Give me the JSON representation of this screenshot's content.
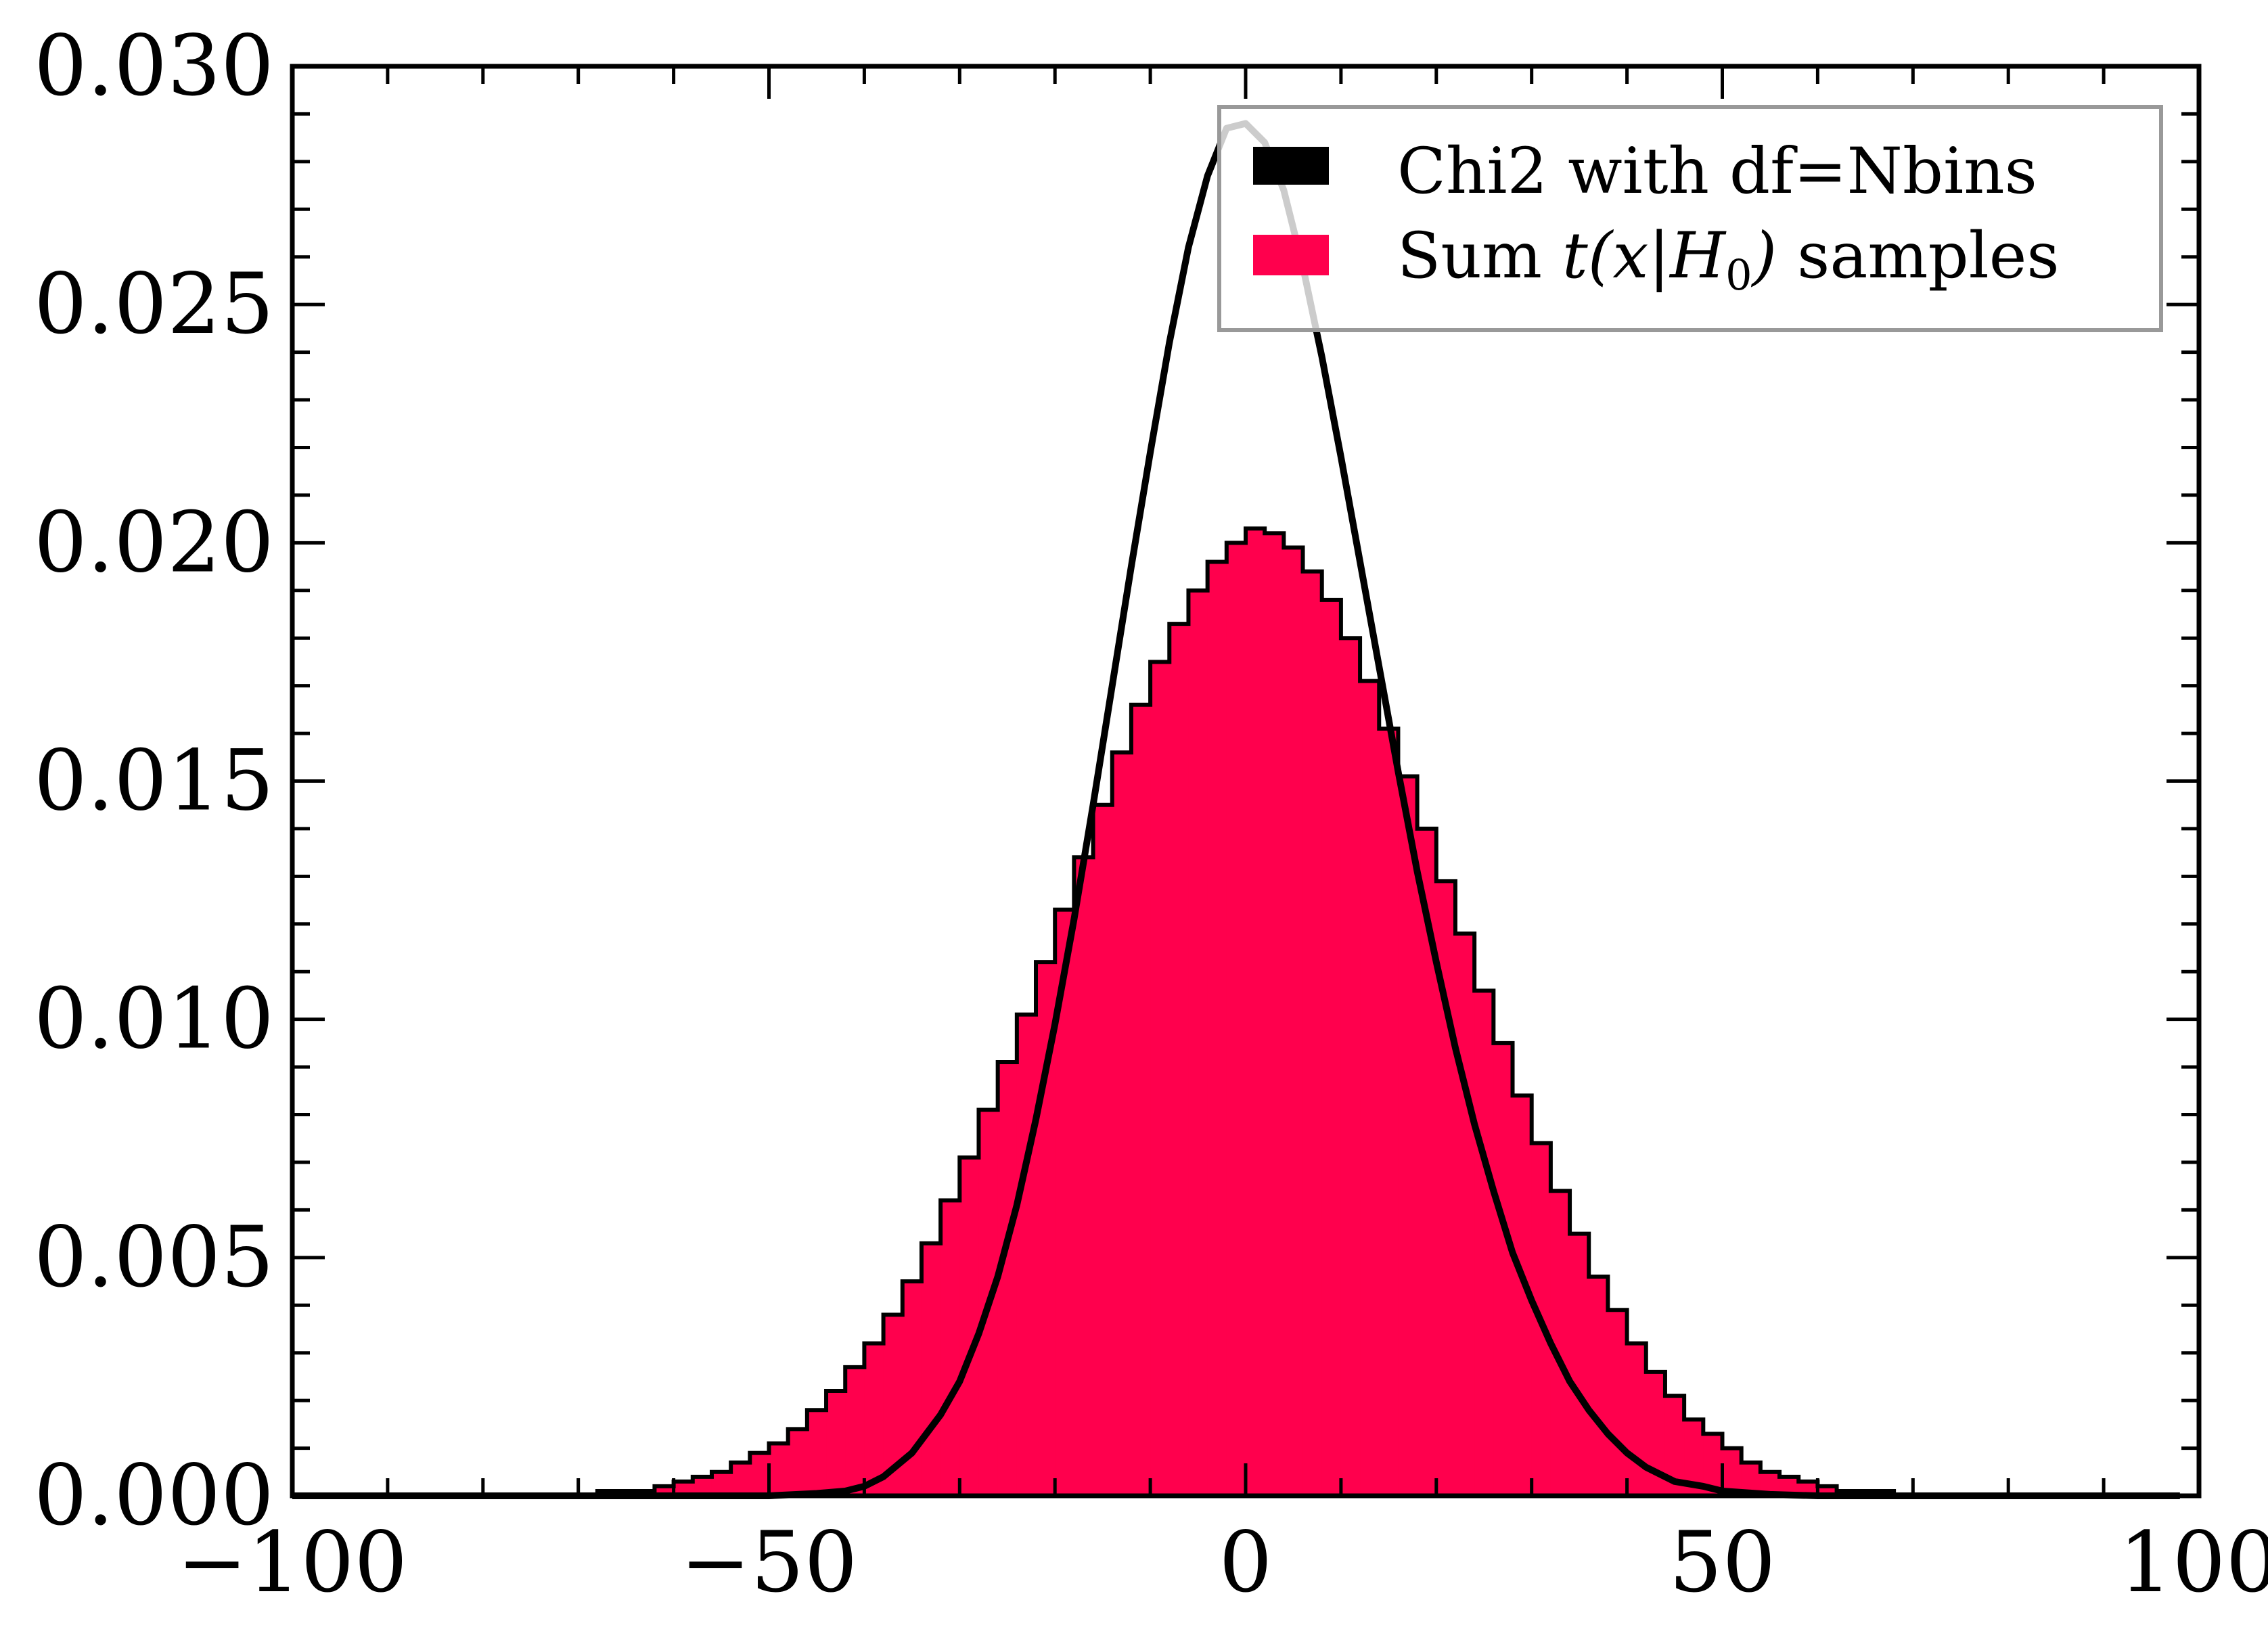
{
  "chart_data": {
    "type": "bar",
    "title": "",
    "xlabel": "",
    "ylabel": "",
    "xlim": [
      -100,
      100
    ],
    "ylim": [
      0,
      0.03
    ],
    "xticks": [
      -100,
      -50,
      0,
      50,
      100
    ],
    "xtick_labels": [
      "−100",
      "−50",
      "0",
      "50",
      "100"
    ],
    "yticks": [
      0.0,
      0.005,
      0.01,
      0.015,
      0.02,
      0.025,
      0.03
    ],
    "ytick_labels": [
      "0.000",
      "0.005",
      "0.010",
      "0.015",
      "0.020",
      "0.025",
      "0.030"
    ],
    "grid": false,
    "legend_position": "upper-right",
    "legend": [
      {
        "label_prefix": "Chi2 with df=Nbins",
        "label_math": "",
        "label_suffix": "",
        "color": "#000000"
      },
      {
        "label_prefix": "Sum ",
        "label_math": "t(x|H0)",
        "label_suffix": " samples",
        "color": "#ff004d"
      }
    ],
    "series": [
      {
        "name": "Sum t(x|H0) samples",
        "type": "histogram",
        "color": "#ff004d",
        "edge_color": "#000000",
        "bin_edges": [
          -98,
          -96,
          -94,
          -92,
          -90,
          -88,
          -86,
          -84,
          -82,
          -80,
          -78,
          -76,
          -74,
          -72,
          -70,
          -68,
          -66,
          -64,
          -62,
          -60,
          -58,
          -56,
          -54,
          -52,
          -50,
          -48,
          -46,
          -44,
          -42,
          -40,
          -38,
          -36,
          -34,
          -32,
          -30,
          -28,
          -26,
          -24,
          -22,
          -20,
          -18,
          -16,
          -14,
          -12,
          -10,
          -8,
          -6,
          -4,
          -2,
          0,
          2,
          4,
          6,
          8,
          10,
          12,
          14,
          16,
          18,
          20,
          22,
          24,
          26,
          28,
          30,
          32,
          34,
          36,
          38,
          40,
          42,
          44,
          46,
          48,
          50,
          52,
          54,
          56,
          58,
          60,
          62,
          64,
          66,
          68,
          70,
          72,
          74,
          76,
          78,
          80,
          82,
          84,
          86,
          88,
          90,
          92,
          94,
          96,
          98
        ],
        "values": [
          0.0,
          0.0,
          0.0,
          0.0,
          0.0,
          0.0,
          0.0,
          0.0,
          0.0,
          0.0,
          0.0,
          0.0,
          0.0,
          0.0,
          0.0,
          0.0001,
          0.0001,
          0.0001,
          0.0002,
          0.0003,
          0.0004,
          0.0005,
          0.0007,
          0.0009,
          0.0011,
          0.0014,
          0.0018,
          0.0022,
          0.0027,
          0.0032,
          0.0038,
          0.0045,
          0.0053,
          0.0062,
          0.0071,
          0.0081,
          0.0091,
          0.0101,
          0.0112,
          0.0123,
          0.0134,
          0.0145,
          0.0156,
          0.0166,
          0.0175,
          0.0183,
          0.019,
          0.0196,
          0.02,
          0.0203,
          0.0202,
          0.0199,
          0.0194,
          0.0188,
          0.018,
          0.0171,
          0.0161,
          0.0151,
          0.014,
          0.0129,
          0.0118,
          0.0106,
          0.0095,
          0.0084,
          0.0074,
          0.0064,
          0.0055,
          0.0046,
          0.0039,
          0.0032,
          0.0026,
          0.0021,
          0.0016,
          0.0013,
          0.001,
          0.0007,
          0.0005,
          0.0004,
          0.0003,
          0.0002,
          0.0001,
          0.0001,
          0.0001,
          0.0,
          0.0,
          0.0,
          0.0,
          0.0,
          0.0,
          0.0,
          0.0,
          0.0,
          0.0,
          0.0,
          0.0,
          0.0,
          0.0,
          0.0
        ]
      },
      {
        "name": "Chi2 with df=Nbins",
        "type": "line",
        "color": "#000000",
        "x": [
          -100,
          -60,
          -50,
          -45,
          -42,
          -40,
          -38,
          -35,
          -32,
          -30,
          -28,
          -26,
          -24,
          -22,
          -20,
          -18,
          -16,
          -14,
          -12,
          -10,
          -8,
          -6,
          -4,
          -2,
          0,
          2,
          4,
          6,
          8,
          10,
          12,
          14,
          16,
          18,
          20,
          22,
          24,
          26,
          28,
          30,
          32,
          34,
          36,
          38,
          40,
          42,
          45,
          48,
          50,
          55,
          60,
          70,
          80,
          98
        ],
        "y": [
          0.0,
          0.0,
          0.0,
          5e-05,
          0.0001,
          0.0002,
          0.0004,
          0.0009,
          0.0017,
          0.0024,
          0.0034,
          0.0046,
          0.0061,
          0.0079,
          0.0099,
          0.0121,
          0.0145,
          0.017,
          0.0195,
          0.0219,
          0.0242,
          0.0262,
          0.0277,
          0.0287,
          0.0288,
          0.0284,
          0.0274,
          0.0258,
          0.0239,
          0.0218,
          0.0196,
          0.0174,
          0.0152,
          0.0131,
          0.0112,
          0.0094,
          0.0078,
          0.0064,
          0.0051,
          0.0041,
          0.0032,
          0.0024,
          0.0018,
          0.0013,
          0.0009,
          0.0006,
          0.0003,
          0.0002,
          0.0001,
          3e-05,
          0.0,
          0.0,
          0.0,
          0.0
        ]
      }
    ]
  }
}
